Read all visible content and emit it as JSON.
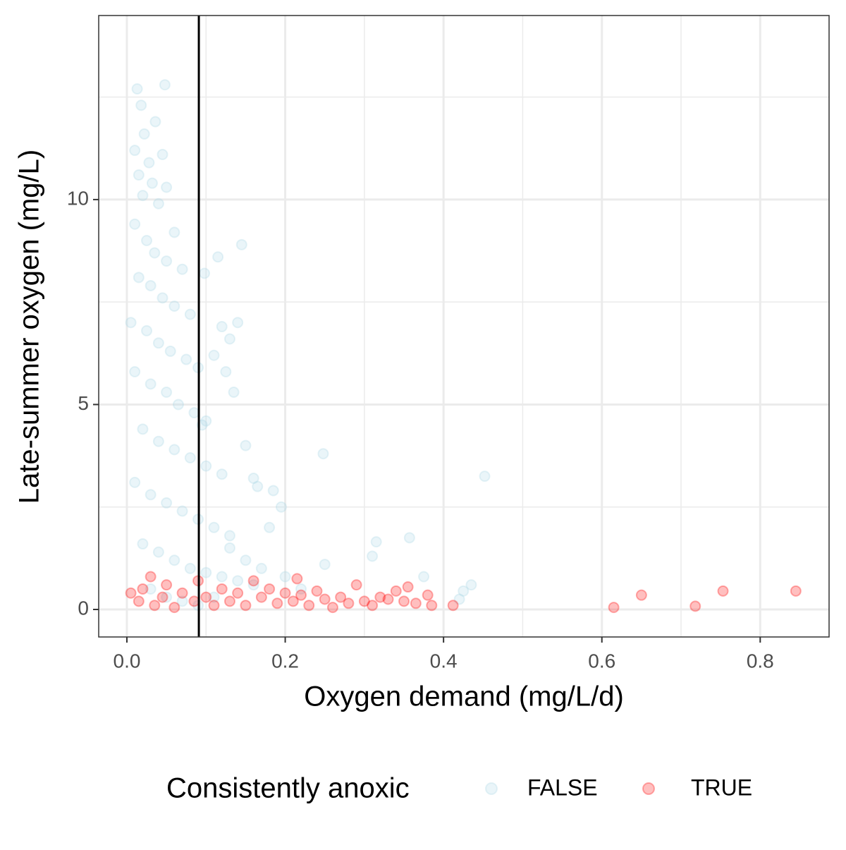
{
  "chart_data": {
    "type": "scatter",
    "x_label": "Oxygen demand (mg/L/d)",
    "y_label": "Late-summer oxygen (mg/L)",
    "legend_title": "Consistently anoxic",
    "legend": "bottom",
    "grid": true,
    "xlim": [
      -0.0356,
      0.887
    ],
    "ylim": [
      -0.671,
      14.49
    ],
    "xticks": [
      {
        "value": 0,
        "label": "0.0"
      },
      0.2,
      0.4,
      0.6,
      0.8
    ],
    "yticks": [
      0,
      5,
      10
    ],
    "x_minor_grid": [
      0.1,
      0.3,
      0.5,
      0.7
    ],
    "y_minor_grid": [
      2.5,
      7.5,
      12.5
    ],
    "vline_x": 0.0909,
    "series": [
      {
        "name": "FALSE",
        "color": "#add8e6",
        "x": [
          0.013,
          0.048,
          0.018,
          0.036,
          0.022,
          0.01,
          0.045,
          0.028,
          0.015,
          0.032,
          0.05,
          0.02,
          0.04,
          0.01,
          0.06,
          0.025,
          0.035,
          0.05,
          0.07,
          0.015,
          0.03,
          0.045,
          0.06,
          0.08,
          0.005,
          0.025,
          0.04,
          0.055,
          0.075,
          0.09,
          0.01,
          0.03,
          0.05,
          0.065,
          0.085,
          0.1,
          0.02,
          0.04,
          0.06,
          0.08,
          0.1,
          0.12,
          0.01,
          0.03,
          0.05,
          0.07,
          0.09,
          0.11,
          0.13,
          0.02,
          0.04,
          0.06,
          0.08,
          0.1,
          0.12,
          0.14,
          0.16,
          0.03,
          0.05,
          0.07,
          0.09,
          0.11,
          0.145,
          0.098,
          0.115,
          0.14,
          0.12,
          0.13,
          0.11,
          0.135,
          0.125,
          0.095,
          0.15,
          0.16,
          0.165,
          0.185,
          0.195,
          0.18,
          0.248,
          0.452,
          0.31,
          0.315,
          0.357,
          0.25,
          0.375,
          0.435,
          0.425,
          0.42,
          0.13,
          0.15,
          0.17,
          0.2,
          0.22
        ],
        "values": [
          12.7,
          12.8,
          12.3,
          11.9,
          11.6,
          11.2,
          11.1,
          10.9,
          10.6,
          10.4,
          10.3,
          10.1,
          9.9,
          9.4,
          9.2,
          9.0,
          8.7,
          8.5,
          8.3,
          8.1,
          7.9,
          7.6,
          7.4,
          7.2,
          7.0,
          6.8,
          6.5,
          6.3,
          6.1,
          5.9,
          5.8,
          5.5,
          5.3,
          5.0,
          4.8,
          4.6,
          4.4,
          4.1,
          3.9,
          3.7,
          3.5,
          3.3,
          3.1,
          2.8,
          2.6,
          2.4,
          2.2,
          2.0,
          1.8,
          1.6,
          1.4,
          1.2,
          1.0,
          0.9,
          0.8,
          0.7,
          0.6,
          0.5,
          0.3,
          0.2,
          0.1,
          0.3,
          8.9,
          8.2,
          8.6,
          7.0,
          6.9,
          6.6,
          6.2,
          5.3,
          5.8,
          4.5,
          4.0,
          3.2,
          3.0,
          2.9,
          2.5,
          2.0,
          3.8,
          3.25,
          1.3,
          1.65,
          1.75,
          1.1,
          0.8,
          0.6,
          0.45,
          0.25,
          1.5,
          1.2,
          1.0,
          0.8,
          0.5
        ]
      },
      {
        "name": "TRUE",
        "color": "#ff0000",
        "x": [
          0.005,
          0.015,
          0.02,
          0.03,
          0.035,
          0.045,
          0.05,
          0.06,
          0.07,
          0.085,
          0.09,
          0.1,
          0.11,
          0.12,
          0.13,
          0.14,
          0.15,
          0.16,
          0.17,
          0.18,
          0.19,
          0.2,
          0.21,
          0.215,
          0.22,
          0.23,
          0.24,
          0.25,
          0.26,
          0.27,
          0.28,
          0.29,
          0.3,
          0.31,
          0.32,
          0.33,
          0.34,
          0.35,
          0.355,
          0.365,
          0.38,
          0.385,
          0.412,
          0.615,
          0.65,
          0.718,
          0.753,
          0.845
        ],
        "values": [
          0.4,
          0.2,
          0.5,
          0.8,
          0.1,
          0.3,
          0.6,
          0.05,
          0.4,
          0.2,
          0.7,
          0.3,
          0.1,
          0.5,
          0.2,
          0.4,
          0.1,
          0.7,
          0.3,
          0.5,
          0.15,
          0.4,
          0.2,
          0.75,
          0.35,
          0.1,
          0.45,
          0.25,
          0.05,
          0.3,
          0.15,
          0.6,
          0.2,
          0.1,
          0.3,
          0.25,
          0.45,
          0.2,
          0.55,
          0.15,
          0.35,
          0.1,
          0.1,
          0.05,
          0.35,
          0.08,
          0.45,
          0.45
        ]
      }
    ]
  }
}
